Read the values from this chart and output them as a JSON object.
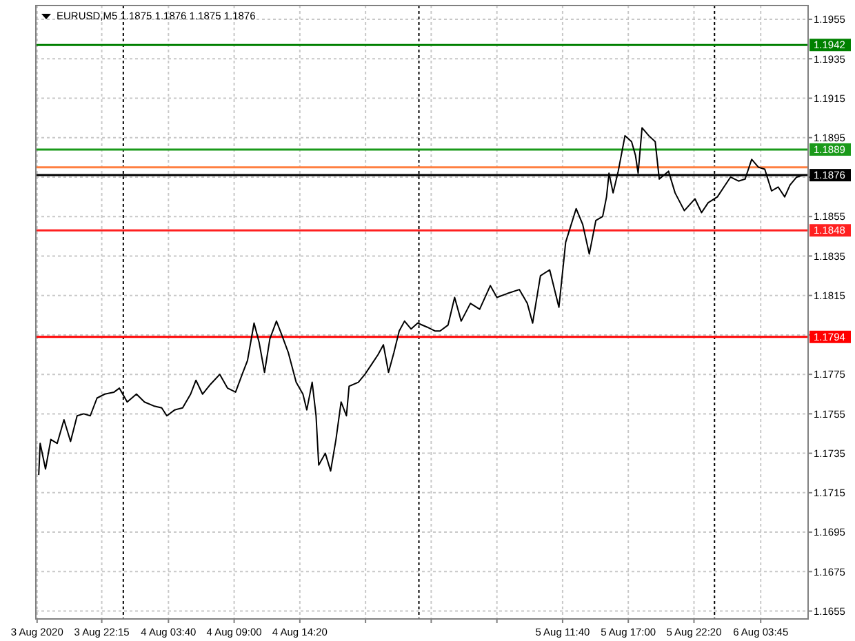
{
  "chart_data": {
    "type": "line",
    "title": "EURUSD,M5 1.1875 1.1876 1.1875 1.1876",
    "x": [
      "2020-08-03T17:08",
      "2020-08-03T17:15",
      "2020-08-03T17:41",
      "2020-08-03T18:07",
      "2020-08-03T18:38",
      "2020-08-03T19:11",
      "2020-08-03T19:43",
      "2020-08-03T20:15",
      "2020-08-03T20:47",
      "2020-08-03T21:19",
      "2020-08-03T21:52",
      "2020-08-03T22:30",
      "2020-08-03T23:15",
      "2020-08-03T23:41",
      "2020-08-04T00:19",
      "2020-08-04T01:04",
      "2020-08-04T01:43",
      "2020-08-04T02:28",
      "2020-08-04T03:07",
      "2020-08-04T03:32",
      "2020-08-04T04:11",
      "2020-08-04T04:49",
      "2020-08-04T05:28",
      "2020-08-04T05:54",
      "2020-08-04T06:26",
      "2020-08-04T07:05",
      "2020-08-04T07:50",
      "2020-08-04T08:28",
      "2020-08-04T09:07",
      "2020-08-04T09:39",
      "2020-08-04T10:05",
      "2020-08-04T10:37",
      "2020-08-04T11:02",
      "2020-08-04T11:28",
      "2020-08-04T11:54",
      "2020-08-04T12:26",
      "2020-08-04T12:52",
      "2020-08-04T13:24",
      "2020-08-04T14:02",
      "2020-08-04T14:35",
      "2020-08-04T14:54",
      "2020-08-04T15:20",
      "2020-08-04T15:39",
      "2020-08-04T15:52",
      "2020-08-04T16:24",
      "2020-08-04T16:50",
      "2020-08-04T17:16",
      "2020-08-04T17:41",
      "2020-08-04T18:07",
      "2020-08-04T18:20",
      "2020-08-04T19:05",
      "2020-08-04T19:37",
      "2020-08-04T20:09",
      "2020-08-04T20:41",
      "2020-08-04T21:07",
      "2020-08-04T21:32",
      "2020-08-04T21:58",
      "2020-08-04T22:24",
      "2020-08-04T22:50",
      "2020-08-04T23:22",
      "2020-08-04T23:54",
      "2020-08-05T00:39",
      "2020-08-05T01:18",
      "2020-08-05T01:43",
      "2020-08-05T02:22",
      "2020-08-05T02:54",
      "2020-08-05T03:26",
      "2020-08-05T04:11",
      "2020-08-05T04:56",
      "2020-08-05T05:48",
      "2020-08-05T06:20",
      "2020-08-05T07:11",
      "2020-08-05T08:09",
      "2020-08-05T08:48",
      "2020-08-05T09:14",
      "2020-08-05T09:52",
      "2020-08-05T10:37",
      "2020-08-05T11:22",
      "2020-08-05T11:55",
      "2020-08-05T12:46",
      "2020-08-05T13:18",
      "2020-08-05T13:50",
      "2020-08-05T14:22",
      "2020-08-05T14:55",
      "2020-08-05T15:14",
      "2020-08-05T15:26",
      "2020-08-05T15:46",
      "2020-08-05T16:11",
      "2020-08-05T16:44",
      "2020-08-05T17:16",
      "2020-08-05T17:35",
      "2020-08-05T17:48",
      "2020-08-05T18:07",
      "2020-08-05T18:40",
      "2020-08-05T19:11",
      "2020-08-05T19:31",
      "2020-08-05T20:16",
      "2020-08-05T20:48",
      "2020-08-05T21:33",
      "2020-08-05T22:25",
      "2020-08-05T22:57",
      "2020-08-05T23:29",
      "2020-08-06T00:14",
      "2020-08-06T00:46",
      "2020-08-06T01:18",
      "2020-08-06T01:57",
      "2020-08-06T02:29",
      "2020-08-06T03:01",
      "2020-08-06T03:34",
      "2020-08-06T04:05",
      "2020-08-06T04:38",
      "2020-08-06T05:10",
      "2020-08-06T05:42",
      "2020-08-06T06:08",
      "2020-08-06T06:40",
      "2020-08-06T07:12"
    ],
    "series": [
      {
        "color": "#000000",
        "values": [
          1.1724,
          1.174,
          1.1727,
          1.1742,
          1.174,
          1.1752,
          1.1741,
          1.1754,
          1.1755,
          1.1754,
          1.1763,
          1.1765,
          1.1766,
          1.1768,
          1.1761,
          1.1765,
          1.1761,
          1.1759,
          1.1758,
          1.1754,
          1.1757,
          1.1758,
          1.1765,
          1.1772,
          1.1765,
          1.177,
          1.1775,
          1.1768,
          1.1766,
          1.1775,
          1.1782,
          1.1801,
          1.1791,
          1.1776,
          1.1793,
          1.1802,
          1.1795,
          1.1786,
          1.1771,
          1.1765,
          1.1757,
          1.1771,
          1.1754,
          1.1729,
          1.1735,
          1.1726,
          1.1742,
          1.1761,
          1.1754,
          1.1769,
          1.1771,
          1.1775,
          1.178,
          1.1785,
          1.179,
          1.1776,
          1.1786,
          1.1797,
          1.1802,
          1.1798,
          1.1801,
          1.1799,
          1.1797,
          1.1797,
          1.18,
          1.1814,
          1.1802,
          1.1811,
          1.1808,
          1.182,
          1.1814,
          1.1816,
          1.1818,
          1.1811,
          1.1801,
          1.1825,
          1.1828,
          1.1809,
          1.1842,
          1.1859,
          1.1851,
          1.1836,
          1.1853,
          1.1855,
          1.1865,
          1.1877,
          1.1867,
          1.1878,
          1.1896,
          1.1893,
          1.1886,
          1.1877,
          1.19,
          1.1896,
          1.1893,
          1.1874,
          1.1878,
          1.1867,
          1.1858,
          1.1864,
          1.1857,
          1.1862,
          1.1865,
          1.187,
          1.1875,
          1.1873,
          1.1874,
          1.1884,
          1.188,
          1.1879,
          1.1868,
          1.187,
          1.1865,
          1.1871,
          1.1875,
          1.1876
        ]
      }
    ],
    "xlim": [
      "2020-08-03T16:54",
      "2020-08-06T07:36"
    ],
    "xticks": [
      {
        "value": "2020-08-03T17:00",
        "label": "3 Aug 2020"
      },
      {
        "value": "2020-08-03T22:15",
        "label": "3 Aug 22:15"
      },
      {
        "value": "2020-08-04T03:40",
        "label": "4 Aug 03:40"
      },
      {
        "value": "2020-08-04T09:00",
        "label": "4 Aug 09:00"
      },
      {
        "value": "2020-08-04T14:20",
        "label": "4 Aug 14:20"
      },
      {
        "value": "2020-08-04T19:40",
        "label": null
      },
      {
        "value": "2020-08-05T01:00",
        "label": null
      },
      {
        "value": "2020-08-05T06:20",
        "label": null
      },
      {
        "value": "2020-08-05T11:40",
        "label": "5 Aug 11:40"
      },
      {
        "value": "2020-08-05T17:00",
        "label": "5 Aug 17:00"
      },
      {
        "value": "2020-08-05T22:20",
        "label": "5 Aug 22:20"
      },
      {
        "value": "2020-08-06T03:45",
        "label": "6 Aug 03:45"
      }
    ],
    "ylim": [
      1.1651,
      1.1962
    ],
    "yticks": [
      1.1655,
      1.1675,
      1.1695,
      1.1715,
      1.1735,
      1.1755,
      1.1775,
      {
        "value": 1.1795,
        "label": null
      },
      1.1815,
      1.1835,
      1.1855,
      {
        "value": 1.1875,
        "label": null
      },
      1.1895,
      1.1915,
      1.1935,
      1.1955
    ],
    "ref_lines": [
      {
        "axis": "y",
        "value": 1.1942,
        "label": "1.1942",
        "color": "#008000"
      },
      {
        "axis": "y",
        "value": 1.1889,
        "label": "1.1889",
        "color": "#1a9a1a"
      },
      {
        "axis": "y",
        "value": 1.188,
        "color": "#ff7f40"
      },
      {
        "axis": "y",
        "value": 1.1876,
        "label": "1.1876",
        "color": "#000000"
      },
      {
        "axis": "y",
        "value": 1.1848,
        "label": "1.1848",
        "color": "#ff2020"
      },
      {
        "axis": "y",
        "value": 1.1794,
        "label": "1.1794",
        "color": "#ff0000"
      },
      {
        "axis": "x",
        "value": "2020-08-04",
        "color": "#000000",
        "line_style": "dotted"
      },
      {
        "axis": "x",
        "value": "2020-08-05",
        "color": "#000000",
        "line_style": "dotted"
      },
      {
        "axis": "x",
        "value": "2020-08-06",
        "color": "#000000",
        "line_style": "dotted"
      }
    ],
    "grid": true,
    "marker": "none",
    "line_style": "solid"
  }
}
